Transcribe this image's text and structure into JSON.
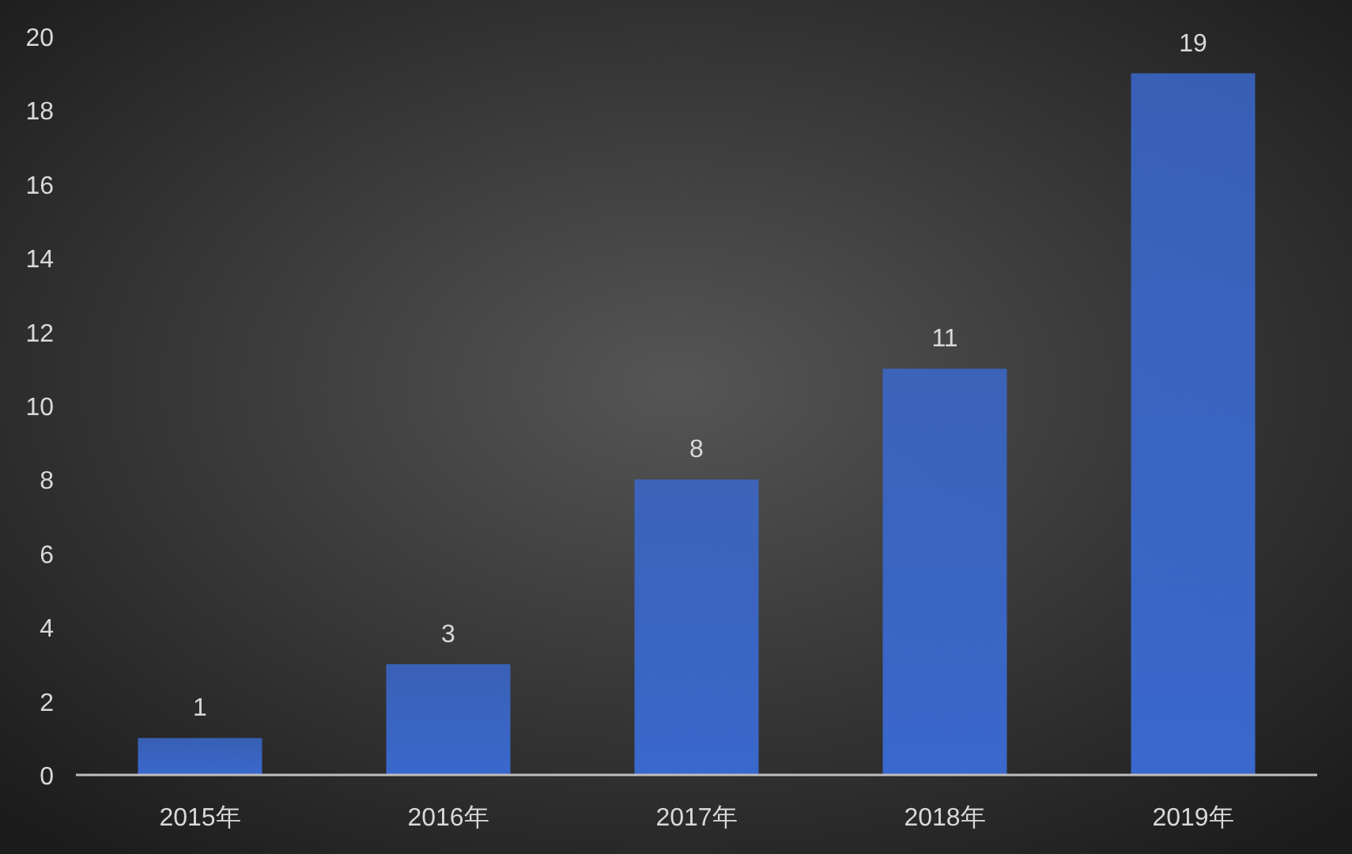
{
  "chart_data": {
    "type": "bar",
    "categories": [
      "2015年",
      "2016年",
      "2017年",
      "2018年",
      "2019年"
    ],
    "values": [
      1,
      3,
      8,
      11,
      19
    ],
    "color": "#3a68cc",
    "ylim": [
      0,
      20
    ],
    "yticks": [
      0,
      2,
      4,
      6,
      8,
      10,
      12,
      14,
      16,
      18,
      20
    ],
    "data_labels": true
  }
}
